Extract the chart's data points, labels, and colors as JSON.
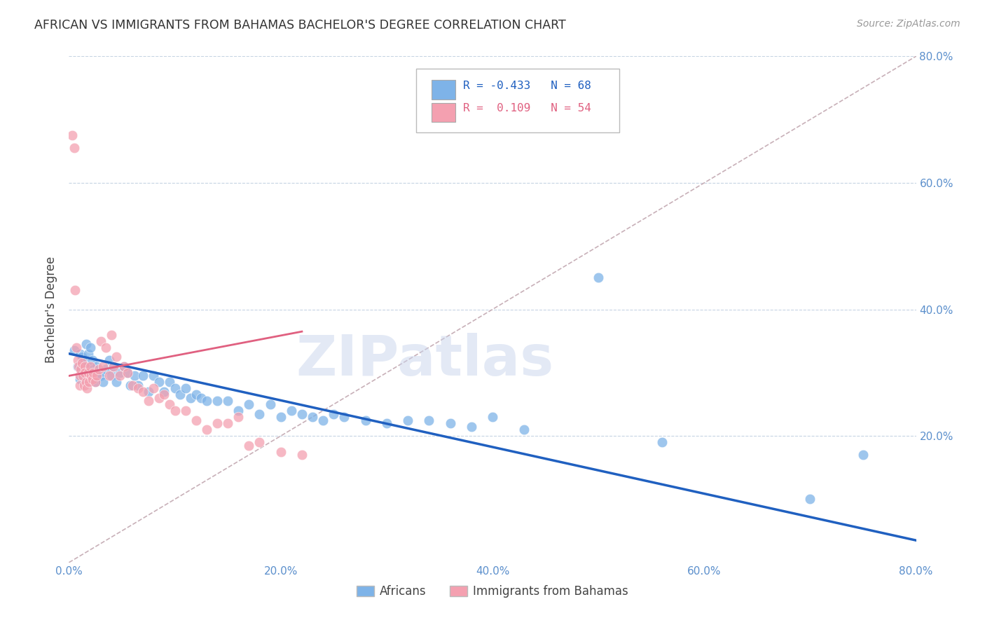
{
  "title": "AFRICAN VS IMMIGRANTS FROM BAHAMAS BACHELOR'S DEGREE CORRELATION CHART",
  "source": "Source: ZipAtlas.com",
  "ylabel": "Bachelor's Degree",
  "xlim": [
    0.0,
    0.8
  ],
  "ylim": [
    0.0,
    0.8
  ],
  "xtick_labels": [
    "0.0%",
    "",
    "20.0%",
    "",
    "40.0%",
    "",
    "60.0%",
    "",
    "80.0%"
  ],
  "xtick_vals": [
    0.0,
    0.1,
    0.2,
    0.3,
    0.4,
    0.5,
    0.6,
    0.7,
    0.8
  ],
  "ytick_labels": [
    "20.0%",
    "40.0%",
    "60.0%",
    "80.0%"
  ],
  "ytick_vals": [
    0.2,
    0.4,
    0.6,
    0.8
  ],
  "african_R": -0.433,
  "african_N": 68,
  "bahamas_R": 0.109,
  "bahamas_N": 54,
  "african_color": "#7EB3E8",
  "bahamas_color": "#F4A0B0",
  "african_line_color": "#2060C0",
  "bahamas_line_color": "#E06080",
  "diagonal_color": "#C8B0B8",
  "watermark_text": "ZIPatlas",
  "african_x": [
    0.005,
    0.008,
    0.01,
    0.01,
    0.012,
    0.013,
    0.015,
    0.016,
    0.017,
    0.018,
    0.02,
    0.02,
    0.022,
    0.023,
    0.025,
    0.026,
    0.028,
    0.03,
    0.032,
    0.035,
    0.038,
    0.04,
    0.042,
    0.045,
    0.048,
    0.052,
    0.055,
    0.058,
    0.062,
    0.065,
    0.07,
    0.075,
    0.08,
    0.085,
    0.09,
    0.095,
    0.1,
    0.105,
    0.11,
    0.115,
    0.12,
    0.125,
    0.13,
    0.14,
    0.15,
    0.16,
    0.17,
    0.18,
    0.19,
    0.2,
    0.21,
    0.22,
    0.23,
    0.24,
    0.25,
    0.26,
    0.28,
    0.3,
    0.32,
    0.34,
    0.36,
    0.38,
    0.4,
    0.43,
    0.5,
    0.56,
    0.7,
    0.75
  ],
  "african_y": [
    0.335,
    0.31,
    0.33,
    0.29,
    0.325,
    0.3,
    0.315,
    0.345,
    0.31,
    0.33,
    0.34,
    0.295,
    0.32,
    0.305,
    0.285,
    0.31,
    0.3,
    0.295,
    0.285,
    0.305,
    0.32,
    0.295,
    0.31,
    0.285,
    0.3,
    0.31,
    0.3,
    0.28,
    0.295,
    0.28,
    0.295,
    0.27,
    0.295,
    0.285,
    0.27,
    0.285,
    0.275,
    0.265,
    0.275,
    0.26,
    0.265,
    0.26,
    0.255,
    0.255,
    0.255,
    0.24,
    0.25,
    0.235,
    0.25,
    0.23,
    0.24,
    0.235,
    0.23,
    0.225,
    0.235,
    0.23,
    0.225,
    0.22,
    0.225,
    0.225,
    0.22,
    0.215,
    0.23,
    0.21,
    0.45,
    0.19,
    0.1,
    0.17
  ],
  "bahamas_x": [
    0.003,
    0.005,
    0.006,
    0.007,
    0.008,
    0.009,
    0.01,
    0.01,
    0.011,
    0.012,
    0.013,
    0.014,
    0.015,
    0.015,
    0.016,
    0.017,
    0.018,
    0.019,
    0.02,
    0.021,
    0.022,
    0.023,
    0.025,
    0.026,
    0.028,
    0.03,
    0.032,
    0.035,
    0.038,
    0.04,
    0.042,
    0.045,
    0.048,
    0.052,
    0.055,
    0.06,
    0.065,
    0.07,
    0.075,
    0.08,
    0.085,
    0.09,
    0.095,
    0.1,
    0.11,
    0.12,
    0.13,
    0.14,
    0.15,
    0.16,
    0.17,
    0.18,
    0.2,
    0.22
  ],
  "bahamas_y": [
    0.675,
    0.655,
    0.43,
    0.34,
    0.32,
    0.31,
    0.295,
    0.28,
    0.305,
    0.315,
    0.295,
    0.28,
    0.31,
    0.3,
    0.285,
    0.275,
    0.3,
    0.285,
    0.31,
    0.295,
    0.29,
    0.3,
    0.285,
    0.295,
    0.305,
    0.35,
    0.31,
    0.34,
    0.295,
    0.36,
    0.31,
    0.325,
    0.295,
    0.31,
    0.3,
    0.28,
    0.275,
    0.27,
    0.255,
    0.275,
    0.26,
    0.265,
    0.25,
    0.24,
    0.24,
    0.225,
    0.21,
    0.22,
    0.22,
    0.23,
    0.185,
    0.19,
    0.175,
    0.17
  ],
  "blue_line_x": [
    0.0,
    0.8
  ],
  "blue_line_y": [
    0.33,
    0.035
  ],
  "pink_line_x": [
    0.0,
    0.22
  ],
  "pink_line_y": [
    0.295,
    0.365
  ],
  "diag_line_x": [
    0.0,
    0.8
  ],
  "diag_line_y": [
    0.0,
    0.8
  ]
}
